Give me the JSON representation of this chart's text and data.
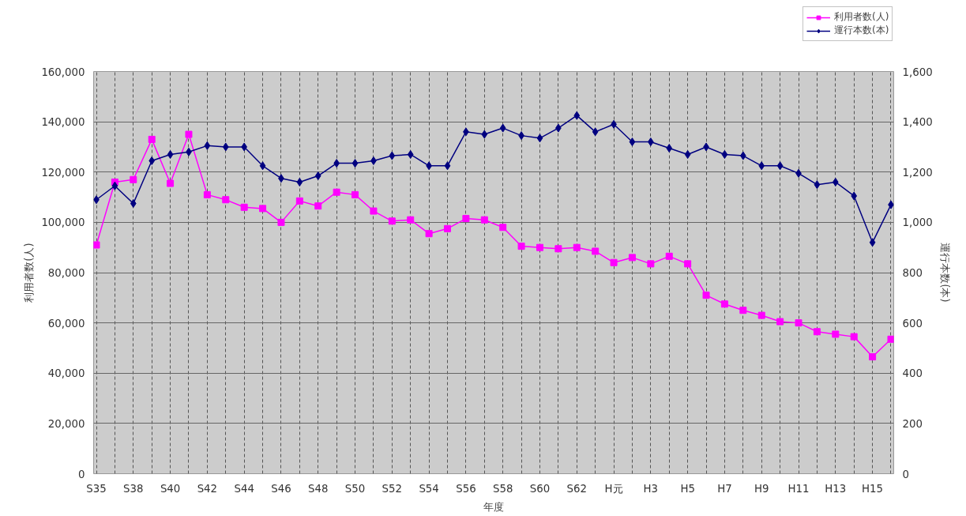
{
  "chart_data": {
    "type": "line",
    "xlabel": "年度",
    "ylabel": "利用者数(人)",
    "y2label": "運行本数(本)",
    "categories": [
      "S35",
      null,
      "S38",
      null,
      "S40",
      null,
      "S42",
      null,
      "S44",
      null,
      "S46",
      null,
      "S48",
      null,
      "S50",
      null,
      "S52",
      null,
      "S54",
      null,
      "S56",
      null,
      "S58",
      null,
      "S60",
      null,
      "S62",
      null,
      "H元",
      null,
      "H3",
      null,
      "H5",
      null,
      "H7",
      null,
      "H9",
      null,
      "H11",
      null,
      "H13",
      null,
      "H15",
      null
    ],
    "series": [
      {
        "name": "利用者数(人)",
        "color": "#ff00ff",
        "marker": "square",
        "values": [
          91000,
          116000,
          117000,
          133000,
          115500,
          135000,
          111000,
          109000,
          106000,
          105500,
          100000,
          108500,
          106500,
          112000,
          111000,
          104500,
          100500,
          101000,
          95500,
          97500,
          101500,
          101000,
          98000,
          90500,
          90000,
          89500,
          90000,
          88500,
          84000,
          86000,
          83500,
          86500,
          83500,
          71000,
          67500,
          65000,
          63000,
          60500,
          60000,
          56500,
          55500,
          54500,
          46500,
          53500
        ]
      },
      {
        "name": "運行本数(本)",
        "color": "#000080",
        "marker": "diamond",
        "axis": "y2",
        "values": [
          1090,
          1145,
          1075,
          1245,
          1270,
          1280,
          1305,
          1300,
          1300,
          1225,
          1175,
          1160,
          1185,
          1235,
          1235,
          1245,
          1265,
          1270,
          1225,
          1225,
          1360,
          1350,
          1375,
          1345,
          1335,
          1375,
          1425,
          1360,
          1390,
          1320,
          1320,
          1295,
          1270,
          1300,
          1270,
          1265,
          1225,
          1225,
          1195,
          1150,
          1160,
          1105,
          920,
          1070
        ]
      }
    ],
    "ylim": [
      0,
      160000
    ],
    "yticks": [
      0,
      {
        "value": 20000,
        "label": "20,000"
      },
      {
        "value": 40000,
        "label": "40,000"
      },
      {
        "value": 60000,
        "label": "60,000"
      },
      {
        "value": 80000,
        "label": "80,000"
      },
      {
        "value": 100000,
        "label": "100,000"
      },
      {
        "value": 120000,
        "label": "120,000"
      },
      {
        "value": 140000,
        "label": "140,000"
      },
      {
        "value": 160000,
        "label": "160,000"
      }
    ],
    "y2lim": [
      0,
      1600
    ],
    "y2ticks": [
      0,
      200,
      400,
      600,
      800,
      {
        "value": 1000,
        "label": "1,000"
      },
      {
        "value": 1200,
        "label": "1,200"
      },
      {
        "value": 1400,
        "label": "1,400"
      },
      {
        "value": 1600,
        "label": "1,600"
      }
    ],
    "grid": true,
    "legend": "top right"
  }
}
